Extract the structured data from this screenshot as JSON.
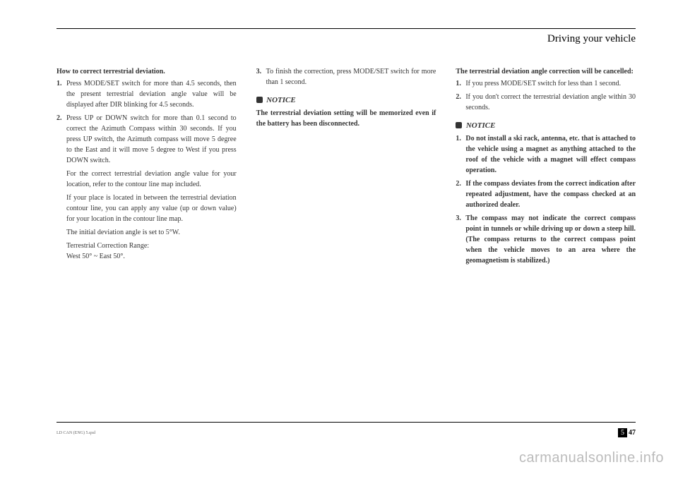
{
  "header": {
    "title": "Driving your vehicle"
  },
  "col1": {
    "heading": "How to correct terrestrial deviation.",
    "item1_num": "1.",
    "item1_txt": "Press MODE/SET switch for more than 4.5 seconds, then the present terrestrial deviation angle value will be displayed after DIR blinking for 4.5 seconds.",
    "item2_num": "2.",
    "item2_txt": "Press UP or DOWN switch for more than 0.1 second to correct the Azimuth Compass within 30 seconds. If you press UP switch, the Azimuth compass will move 5 degree to the East and it will move 5 degree to West if you press DOWN switch.",
    "sub1": "For the correct terrestrial deviation angle value for your location, refer to the contour line map included.",
    "sub2": "If your place is located in between the terrestrial deviation contour line, you can apply any value (up or down value) for your location in the contour line map.",
    "sub3": "The initial deviation angle is set to 5°W.",
    "sub4a": "Terrestrial Correction Range:",
    "sub4b": "West 50° ~ East 50°."
  },
  "col2": {
    "item3_num": "3.",
    "item3_txt": "To finish the correction, press MODE/SET switch for more than 1 second.",
    "notice_label": "NOTICE",
    "notice_body": "The terrestrial deviation setting will be memorized even if the battery has been disconnected."
  },
  "col3": {
    "heading": "The terrestrial deviation angle correction will be cancelled:",
    "item1_num": "1.",
    "item1_txt": "If you press MODE/SET switch for less than 1 second.",
    "item2_num": "2.",
    "item2_txt": "If you don't correct the terrestrial deviation angle within 30 seconds.",
    "notice_label": "NOTICE",
    "n1_num": "1.",
    "n1_txt": "Do not install a ski rack, antenna, etc. that is attached to the vehicle using a magnet as anything attached to the roof of the vehicle with a magnet will effect compass operation.",
    "n2_num": "2.",
    "n2_txt": "If the compass deviates from the correct indication after repeated adjustment, have the compass checked at an authorized dealer.",
    "n3_num": "3.",
    "n3_txt": "The compass may not indicate the correct compass point in tunnels or while driving up or down a steep hill. (The compass returns to the correct compass point when the vehicle moves to an area where the geomagnetism is stabilized.)"
  },
  "footer": {
    "chapter": "5",
    "page": "47",
    "code": "LD CAN (ENG) 5.qxd"
  },
  "watermark": "carmanualsonline.info"
}
